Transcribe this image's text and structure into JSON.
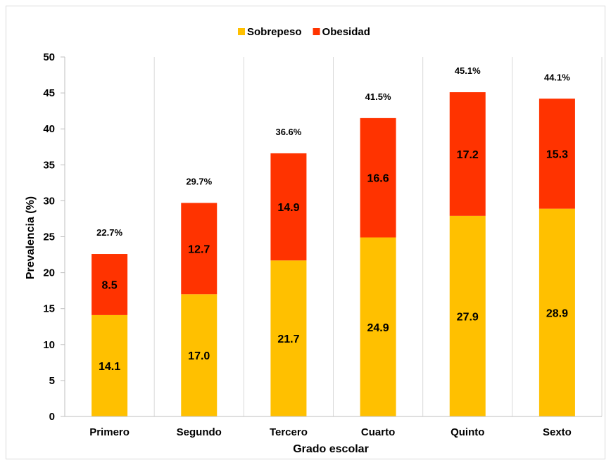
{
  "chart_data": {
    "type": "bar",
    "stacked": true,
    "categories": [
      "Primero",
      "Segundo",
      "Tercero",
      "Cuarto",
      "Quinto",
      "Sexto"
    ],
    "series": [
      {
        "name": "Sobrepeso",
        "color": "#FFC000",
        "values": [
          14.1,
          17.0,
          21.7,
          24.9,
          27.9,
          28.9
        ],
        "labels": [
          "14.1",
          "17.0",
          "21.7",
          "24.9",
          "27.9",
          "28.9"
        ]
      },
      {
        "name": "Obesidad",
        "color": "#FF3300",
        "values": [
          8.5,
          12.7,
          14.9,
          16.6,
          17.2,
          15.3
        ],
        "labels": [
          "8.5",
          "12.7",
          "14.9",
          "16.6",
          "17.2",
          "15.3"
        ]
      }
    ],
    "totals": [
      "22.7%",
      "29.7%",
      "36.6%",
      "41.5%",
      "45.1%",
      "44.1%"
    ],
    "xlabel": "Grado escolar",
    "ylabel": "Prevalencia (%)",
    "ylim": [
      0,
      50
    ],
    "yticks": [
      0,
      5,
      10,
      15,
      20,
      25,
      30,
      35,
      40,
      45,
      50
    ],
    "grid": "vertical",
    "legend": "top-center"
  }
}
